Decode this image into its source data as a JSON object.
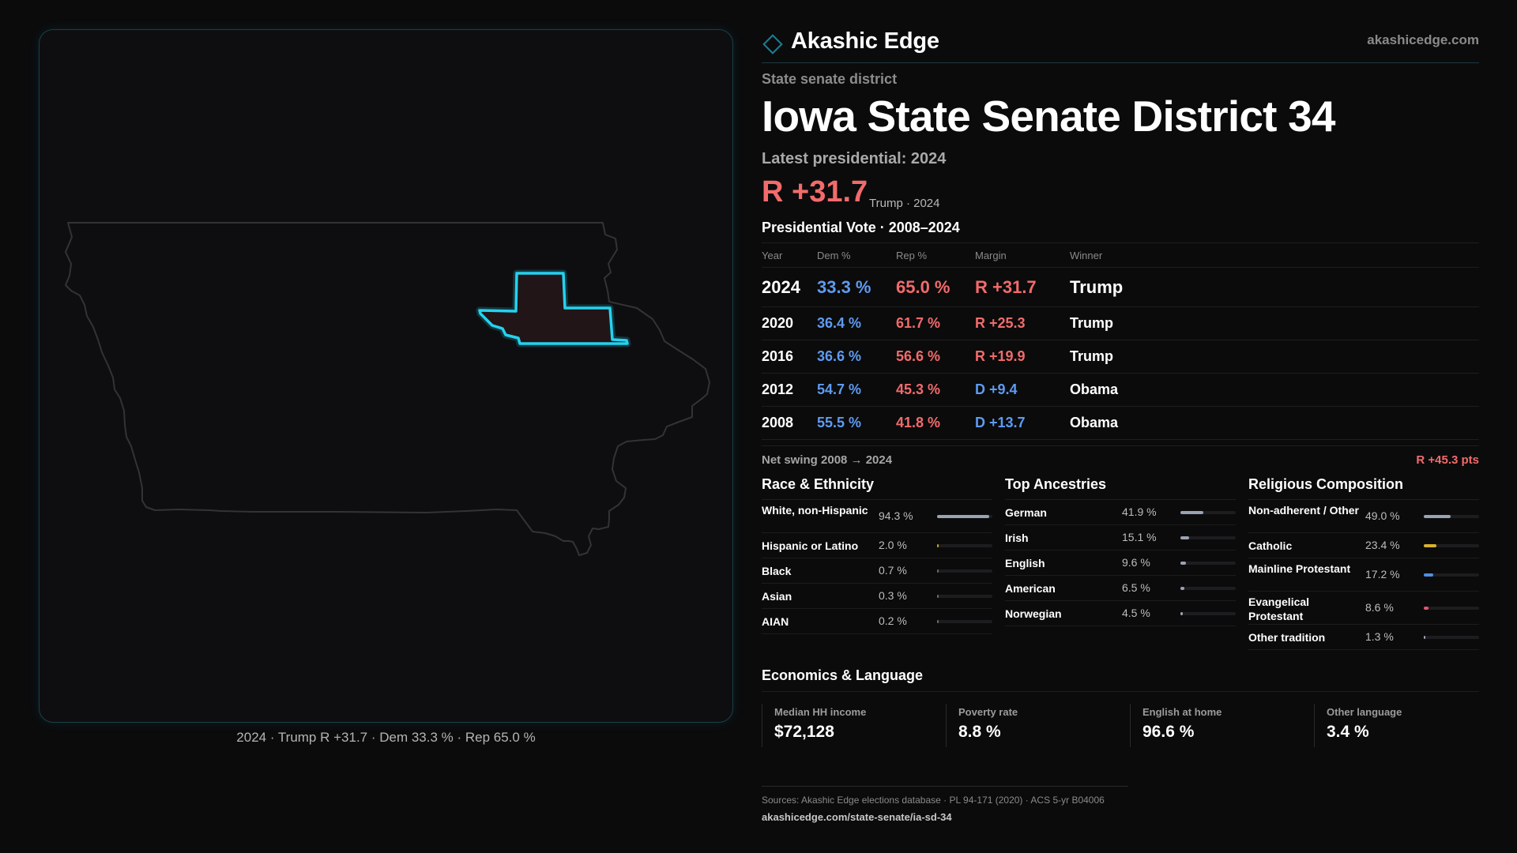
{
  "map": {
    "caption": "2024 · Trump R +31.7 · Dem 33.3 % · Rep 65.0 %"
  },
  "brand": {
    "name": "Akashic Edge",
    "url": "akashicedge.com",
    "logo_icon": "diamond-outline-icon"
  },
  "header": {
    "kicker": "State senate district",
    "title": "Iowa State Senate District 34",
    "latest_label": "Latest presidential: 2024",
    "margin": "R +31.7",
    "margin_sub": "Trump · 2024"
  },
  "presidential": {
    "title": "Presidential Vote · 2008–2024",
    "columns": [
      "Year",
      "Dem %",
      "Rep %",
      "Margin",
      "Winner"
    ],
    "rows": [
      {
        "year": "2024",
        "dem": "33.3 %",
        "rep": "65.0 %",
        "margin": "R +31.7",
        "winner": "Trump",
        "party": "R"
      },
      {
        "year": "2020",
        "dem": "36.4 %",
        "rep": "61.7 %",
        "margin": "R +25.3",
        "winner": "Trump",
        "party": "R"
      },
      {
        "year": "2016",
        "dem": "36.6 %",
        "rep": "56.6 %",
        "margin": "R +19.9",
        "winner": "Trump",
        "party": "R"
      },
      {
        "year": "2012",
        "dem": "54.7 %",
        "rep": "45.3 %",
        "margin": "D +9.4",
        "winner": "Obama",
        "party": "D"
      },
      {
        "year": "2008",
        "dem": "55.5 %",
        "rep": "41.8 %",
        "margin": "D +13.7",
        "winner": "Obama",
        "party": "D"
      }
    ],
    "swing_label": "Net swing 2008 → 2024",
    "swing_value": "R +45.3 pts"
  },
  "race": {
    "title": "Race & Ethnicity",
    "items": [
      {
        "label": "White, non-Hispanic",
        "value": "94.3 %",
        "fraction": 0.943,
        "color": "#9aa3b1"
      },
      {
        "label": "Hispanic or Latino",
        "value": "2.0 %",
        "fraction": 0.02,
        "color": "#c9a227"
      },
      {
        "label": "Black",
        "value": "0.7 %",
        "fraction": 0.007,
        "color": "#6b6b6b"
      },
      {
        "label": "Asian",
        "value": "0.3 %",
        "fraction": 0.003,
        "color": "#6b6b6b"
      },
      {
        "label": "AIAN",
        "value": "0.2 %",
        "fraction": 0.002,
        "color": "#6b6b6b"
      }
    ]
  },
  "ancestry": {
    "title": "Top Ancestries",
    "items": [
      {
        "label": "German",
        "value": "41.9 %",
        "fraction": 0.419,
        "color": "#9aa3b1"
      },
      {
        "label": "Irish",
        "value": "15.1 %",
        "fraction": 0.151,
        "color": "#9aa3b1"
      },
      {
        "label": "English",
        "value": "9.6 %",
        "fraction": 0.096,
        "color": "#9aa3b1"
      },
      {
        "label": "American",
        "value": "6.5 %",
        "fraction": 0.065,
        "color": "#9aa3b1"
      },
      {
        "label": "Norwegian",
        "value": "4.5 %",
        "fraction": 0.045,
        "color": "#9aa3b1"
      }
    ]
  },
  "religion": {
    "title": "Religious Composition",
    "items": [
      {
        "label": "Non-adherent / Other",
        "value": "49.0 %",
        "fraction": 0.49,
        "color": "#9aa3b1"
      },
      {
        "label": "Catholic",
        "value": "23.4 %",
        "fraction": 0.234,
        "color": "#d9b12e"
      },
      {
        "label": "Mainline Protestant",
        "value": "17.2 %",
        "fraction": 0.172,
        "color": "#4f8fe0"
      },
      {
        "label": "Evangelical Protestant",
        "value": "8.6 %",
        "fraction": 0.086,
        "color": "#e2566b"
      },
      {
        "label": "Other tradition",
        "value": "1.3 %",
        "fraction": 0.013,
        "color": "#9aa3b1"
      }
    ]
  },
  "economics": {
    "title": "Economics & Language",
    "cards": [
      {
        "label": "Median HH income",
        "value": "$72,128"
      },
      {
        "label": "Poverty rate",
        "value": "8.8 %"
      },
      {
        "label": "English at home",
        "value": "96.6 %"
      },
      {
        "label": "Other language",
        "value": "3.4 %"
      }
    ]
  },
  "footer": {
    "sources": "Sources: Akashic Edge elections database · PL 94-171 (2020) · ACS 5-yr B04006",
    "url": "akashicedge.com/state-senate/ia-sd-34"
  },
  "colors": {
    "dem": "#5e9bf0",
    "rep": "#f26b6b",
    "accent": "#1ec8e6"
  }
}
